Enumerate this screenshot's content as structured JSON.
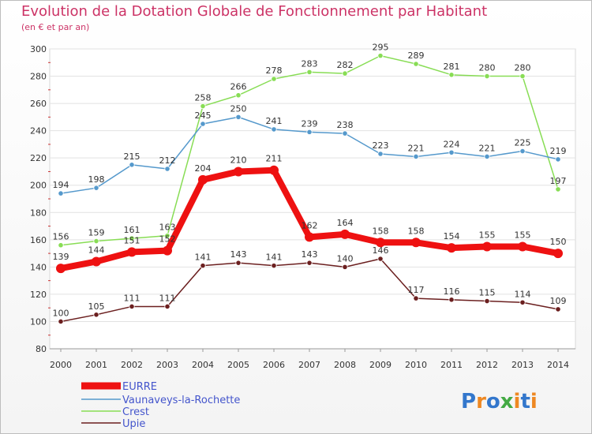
{
  "header": {
    "title": "Evolution de la Dotation Globale de Fonctionnement par Habitant",
    "subtitle": "(en € et par an)"
  },
  "logo": {
    "text": "Proxiti"
  },
  "chart_data": {
    "type": "line",
    "x": [
      2000,
      2001,
      2002,
      2003,
      2004,
      2005,
      2006,
      2007,
      2008,
      2009,
      2010,
      2011,
      2012,
      2013,
      2014
    ],
    "ylim": [
      80,
      300
    ],
    "yticks": [
      80,
      100,
      120,
      140,
      160,
      180,
      200,
      220,
      240,
      260,
      280,
      300
    ],
    "grid": true,
    "legend_position": "bottom-left",
    "series": [
      {
        "name": "Crest",
        "color": "#88dd55",
        "values": [
          156,
          159,
          161,
          163,
          258,
          266,
          278,
          283,
          282,
          295,
          289,
          281,
          280,
          280,
          197
        ]
      },
      {
        "name": "Vaunaveys-la-Rochette",
        "color": "#5599cc",
        "values": [
          194,
          198,
          215,
          212,
          245,
          250,
          241,
          239,
          238,
          223,
          221,
          224,
          221,
          225,
          219
        ]
      },
      {
        "name": "Upie",
        "color": "#6b1f1f",
        "values": [
          100,
          105,
          111,
          111,
          141,
          143,
          141,
          143,
          140,
          146,
          117,
          116,
          115,
          114,
          109
        ]
      },
      {
        "name": "EURRE",
        "color": "#ee1111",
        "values": [
          139,
          144,
          151,
          152,
          204,
          210,
          211,
          162,
          164,
          158,
          158,
          154,
          155,
          155,
          150
        ]
      }
    ],
    "legend_order": [
      "EURRE",
      "Vaunaveys-la-Rochette",
      "Crest",
      "Upie"
    ]
  }
}
